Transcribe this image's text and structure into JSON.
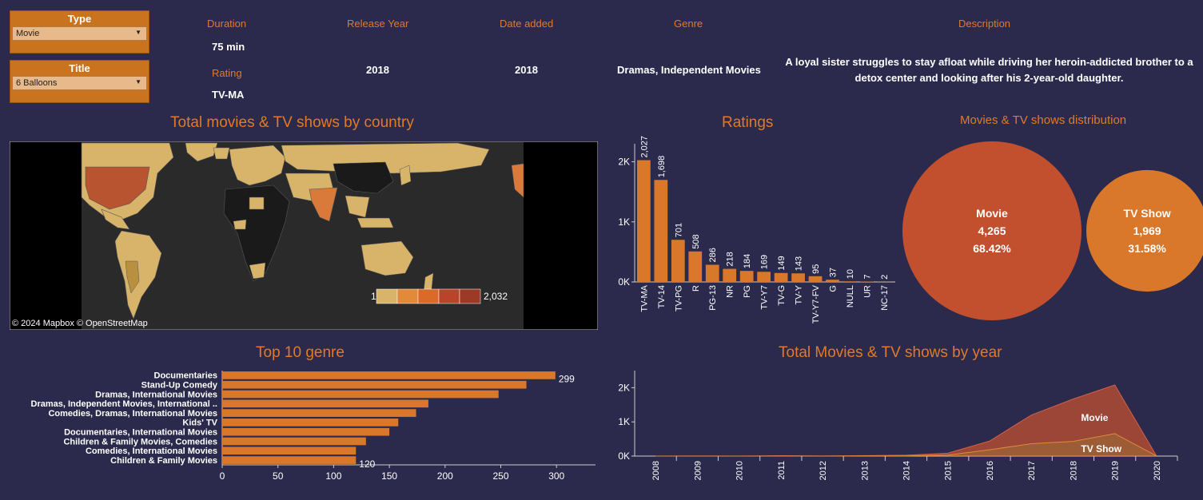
{
  "filters": {
    "type_title": "Type",
    "type_value": "Movie",
    "title_title": "Title",
    "title_value": "6 Balloons"
  },
  "details": {
    "duration_label": "Duration",
    "duration_value": "75 min",
    "rating_label": "Rating",
    "rating_value": "TV-MA",
    "release_label": "Release Year",
    "release_value": "2018",
    "date_label": "Date added",
    "date_value": "2018",
    "genre_label": "Genre",
    "genre_value": "Dramas, Independent Movies",
    "desc_label": "Description",
    "desc_line1": "A loyal sister struggles to stay afloat while driving her heroin-addicted brother to a",
    "desc_line2": "detox center and looking after his 2-year-old daughter."
  },
  "map": {
    "title": "Total movies & TV shows by country",
    "legend_min": "1",
    "legend_max": "2,032",
    "attribution": "© 2024 Mapbox  © OpenStreetMap",
    "colors": [
      "#d8b46a",
      "#e08a3a",
      "#d96a2a",
      "#b8442a",
      "#9c3a28"
    ]
  },
  "colors": {
    "bar": "#d9782a",
    "movie": "#c2502f",
    "tvshow": "#d9782a",
    "background": "#2b2a4d"
  },
  "chart_data": [
    {
      "id": "ratings",
      "type": "bar",
      "title": "Ratings",
      "categories": [
        "TV-MA",
        "TV-14",
        "TV-PG",
        "R",
        "PG-13",
        "NR",
        "PG",
        "TV-Y7",
        "TV-G",
        "TV-Y",
        "TV-Y7-FV",
        "G",
        "NULL",
        "UR",
        "NC-17"
      ],
      "values": [
        2027,
        1698,
        701,
        508,
        286,
        218,
        184,
        169,
        149,
        143,
        95,
        37,
        10,
        7,
        2
      ],
      "value_labels": [
        "2,027",
        "1,698",
        "701",
        "508",
        "286",
        "218",
        "184",
        "169",
        "149",
        "143",
        "95",
        "37",
        "10",
        "7",
        "2"
      ],
      "ytick_labels": [
        "0K",
        "1K",
        "2K"
      ],
      "yticks": [
        0,
        1000,
        2000
      ],
      "ylim": [
        0,
        2300
      ]
    },
    {
      "id": "distribution",
      "type": "pie",
      "title": "Movies & TV shows distribution",
      "slices": [
        {
          "label": "Movie",
          "value": 4265,
          "value_label": "4,265",
          "percent": "68.42%"
        },
        {
          "label": "TV Show",
          "value": 1969,
          "value_label": "1,969",
          "percent": "31.58%"
        }
      ]
    },
    {
      "id": "genres",
      "type": "bar",
      "title": "Top 10 genre",
      "orientation": "horizontal",
      "categories": [
        "Documentaries",
        "Stand-Up Comedy",
        "Dramas, International Movies",
        "Dramas, Independent Movies, International ..",
        "Comedies, Dramas, International Movies",
        "Kids' TV",
        "Documentaries, International Movies",
        "Children & Family Movies, Comedies",
        "Comedies, International Movies",
        "Children & Family Movies"
      ],
      "values": [
        299,
        273,
        248,
        185,
        174,
        158,
        150,
        129,
        120,
        120
      ],
      "shown_labels": {
        "0": "299",
        "9": "120"
      },
      "xticks": [
        0,
        50,
        100,
        150,
        200,
        250,
        300
      ],
      "xtick_labels": [
        "0",
        "50",
        "100",
        "150",
        "200",
        "250",
        "300"
      ],
      "xlim": [
        0,
        335
      ]
    },
    {
      "id": "years",
      "type": "area",
      "title": "Total Movies & TV shows by year",
      "x": [
        "2008",
        "2009",
        "2010",
        "2011",
        "2012",
        "2013",
        "2014",
        "2015",
        "2016",
        "2017",
        "2018",
        "2019",
        "2020"
      ],
      "series": [
        {
          "name": "Movie",
          "values": [
            1,
            2,
            1,
            13,
            3,
            6,
            19,
            56,
            253,
            839,
            1237,
            1424,
            1
          ]
        },
        {
          "name": "TV Show",
          "values": [
            0,
            0,
            0,
            0,
            0,
            5,
            6,
            30,
            185,
            361,
            430,
            656,
            3
          ]
        }
      ],
      "ytick_labels": [
        "0K",
        "1K",
        "2K"
      ],
      "yticks": [
        0,
        1000,
        2000
      ],
      "ylim": [
        0,
        2500
      ]
    }
  ]
}
